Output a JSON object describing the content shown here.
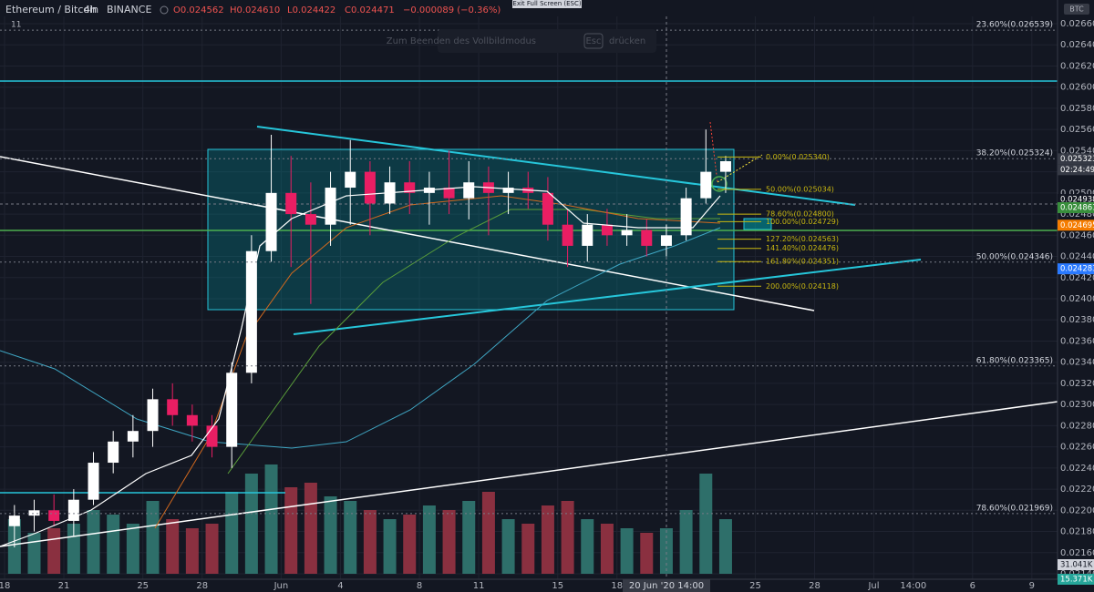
{
  "header": {
    "symbol": "Ethereum / Bitcoin",
    "interval": "4h",
    "exchange": "BINANCE",
    "ohlc": [
      "O0.024562",
      "H0.024610",
      "L0.024422",
      "C0.024471"
    ],
    "change": "−0.000089 (−0.36%)",
    "indicator_count": "11"
  },
  "exit_button": "Exit Full Screen (ESC)",
  "fullscreen_hint": {
    "before": "Zum Beenden des Vollbildmodus",
    "key": "Esc",
    "after": "drücken"
  },
  "currency_badge": "BTC",
  "countdown": "02:24:49",
  "crosshair_label": "20 Jun '20  14:00",
  "chart_data": {
    "type": "candlestick",
    "up_color": "#ffffff",
    "down_color": "#e91e63",
    "volume_up_color": "#2e6f6a",
    "volume_down_color": "#8a3040",
    "categories": [
      "18",
      null,
      null,
      "21",
      null,
      null,
      null,
      "25",
      null,
      null,
      "28",
      null,
      null,
      null,
      "Jun",
      null,
      null,
      "4",
      null,
      null,
      null,
      "8",
      null,
      null,
      "11",
      null,
      null,
      null,
      "15",
      null,
      null,
      "18",
      null,
      null,
      null,
      null,
      null
    ],
    "future_categories": [
      null,
      "25",
      null,
      null,
      "28",
      null,
      null,
      "Jul",
      null,
      "14:00",
      null,
      null,
      "6",
      null,
      null,
      "9",
      null,
      null
    ],
    "open": [
      0.02185,
      0.02195,
      0.022,
      0.0219,
      0.0221,
      0.02245,
      0.02265,
      0.02275,
      0.02305,
      0.0229,
      0.0228,
      0.0226,
      0.0233,
      0.02445,
      0.025,
      0.0248,
      0.0247,
      0.02505,
      0.0252,
      0.0249,
      0.0251,
      0.025,
      0.02505,
      0.02495,
      0.0251,
      0.025,
      0.02505,
      0.025,
      0.0247,
      0.0245,
      0.0247,
      0.0246,
      0.02465,
      0.0245,
      0.0246,
      0.02495,
      0.0252
    ],
    "high": [
      0.02205,
      0.0221,
      0.02215,
      0.0222,
      0.02255,
      0.02275,
      0.0229,
      0.02315,
      0.0232,
      0.023,
      0.0229,
      0.0234,
      0.0246,
      0.02555,
      0.02535,
      0.0251,
      0.0252,
      0.0255,
      0.0253,
      0.02525,
      0.0253,
      0.0252,
      0.0254,
      0.0253,
      0.02525,
      0.0252,
      0.0252,
      0.02515,
      0.02485,
      0.0248,
      0.02485,
      0.0248,
      0.02475,
      0.0247,
      0.02505,
      0.0256,
      0.02535
    ],
    "low": [
      0.02165,
      0.0218,
      0.02185,
      0.02175,
      0.02205,
      0.02235,
      0.0225,
      0.0226,
      0.0228,
      0.02265,
      0.0225,
      0.0224,
      0.0232,
      0.02435,
      0.0243,
      0.02395,
      0.0245,
      0.0247,
      0.0246,
      0.0248,
      0.0248,
      0.0247,
      0.0248,
      0.02475,
      0.0246,
      0.0248,
      0.02485,
      0.02455,
      0.0243,
      0.02435,
      0.0245,
      0.0245,
      0.0244,
      0.0244,
      0.02455,
      0.0249,
      0.025
    ],
    "close": [
      0.02195,
      0.022,
      0.0219,
      0.0221,
      0.02245,
      0.02265,
      0.02275,
      0.02305,
      0.0229,
      0.0228,
      0.0226,
      0.0233,
      0.02445,
      0.025,
      0.0248,
      0.0247,
      0.02505,
      0.0252,
      0.0249,
      0.0251,
      0.025,
      0.02505,
      0.02495,
      0.0251,
      0.025,
      0.02505,
      0.025,
      0.0247,
      0.0245,
      0.0247,
      0.0246,
      0.02465,
      0.0245,
      0.0246,
      0.02495,
      0.0252,
      0.0253
    ],
    "volume": [
      60,
      45,
      50,
      55,
      70,
      65,
      55,
      80,
      60,
      50,
      55,
      90,
      110,
      120,
      95,
      100,
      85,
      80,
      70,
      60,
      65,
      75,
      70,
      80,
      90,
      60,
      55,
      75,
      80,
      60,
      55,
      50,
      45,
      50,
      70,
      110,
      60
    ],
    "vlim": [
      0,
      200
    ],
    "ylim": [
      0.0214,
      0.0266
    ],
    "yticks": [
      {
        "value": 0.0214,
        "label": "0.021400"
      },
      {
        "value": 0.0216,
        "label": "0.021600"
      },
      {
        "value": 0.0218,
        "label": "0.021800"
      },
      {
        "value": 0.022,
        "label": "0.022000"
      },
      {
        "value": 0.0222,
        "label": "0.022200"
      },
      {
        "value": 0.0224,
        "label": "0.022400"
      },
      {
        "value": 0.0226,
        "label": "0.022600"
      },
      {
        "value": 0.0228,
        "label": "0.022800"
      },
      {
        "value": 0.023,
        "label": "0.023000"
      },
      {
        "value": 0.0232,
        "label": "0.023200"
      },
      {
        "value": 0.0234,
        "label": "0.023400"
      },
      {
        "value": 0.0236,
        "label": "0.023600"
      },
      {
        "value": 0.0238,
        "label": "0.023800"
      },
      {
        "value": 0.024,
        "label": "0.024000"
      },
      {
        "value": 0.0242,
        "label": "0.024200"
      },
      {
        "value": 0.0244,
        "label": "0.024400"
      },
      {
        "value": 0.0246,
        "label": "0.024600"
      },
      {
        "value": 0.0248,
        "label": "0.024800"
      },
      {
        "value": 0.025,
        "label": "0.025000"
      },
      {
        "value": 0.0252,
        "label": "0.025200"
      },
      {
        "value": 0.0254,
        "label": "0.025400"
      },
      {
        "value": 0.0256,
        "label": "0.025600"
      },
      {
        "value": 0.0258,
        "label": "0.025800"
      },
      {
        "value": 0.026,
        "label": "0.026000"
      },
      {
        "value": 0.0262,
        "label": "0.026200"
      },
      {
        "value": 0.0264,
        "label": "0.026400"
      },
      {
        "value": 0.0266,
        "label": "0.026600"
      }
    ],
    "grid": true,
    "fib_major": [
      {
        "value": 0.026539,
        "label": "23.60%(0.026539)"
      },
      {
        "value": 0.025324,
        "label": "38.20%(0.025324)"
      },
      {
        "value": 0.024346,
        "label": "50.00%(0.024346)"
      },
      {
        "value": 0.023365,
        "label": "61.80%(0.023365)"
      },
      {
        "value": 0.021969,
        "label": "78.60%(0.021969)"
      }
    ],
    "fib_minor": [
      {
        "value": 0.02534,
        "label": "0.00%(0.025340)"
      },
      {
        "value": 0.025034,
        "label": "50.00%(0.025034)"
      },
      {
        "value": 0.0248,
        "label": "78.60%(0.024800)"
      },
      {
        "value": 0.024729,
        "label": "100.00%(0.024729)"
      },
      {
        "value": 0.024563,
        "label": "127.20%(0.024563)"
      },
      {
        "value": 0.024476,
        "label": "141.40%(0.024476)"
      },
      {
        "value": 0.024351,
        "label": "161.80%(0.024351)"
      },
      {
        "value": 0.024118,
        "label": "200.00%(0.024118)"
      }
    ],
    "fib_color": "#c9b810",
    "price_tags": [
      {
        "value": 0.025323,
        "color": "#363a45"
      },
      {
        "value": 0.024938,
        "color": "#131722"
      },
      {
        "value": 0.024861,
        "color": "#388e3c"
      },
      {
        "value": 0.024695,
        "color": "#f57c00"
      },
      {
        "value": 0.024283,
        "color": "#2979ff"
      }
    ],
    "volume_tags": [
      {
        "label": "31.041K",
        "color": "#d1d4dc"
      },
      {
        "label": "15.371K",
        "color": "#26a69a"
      }
    ]
  }
}
